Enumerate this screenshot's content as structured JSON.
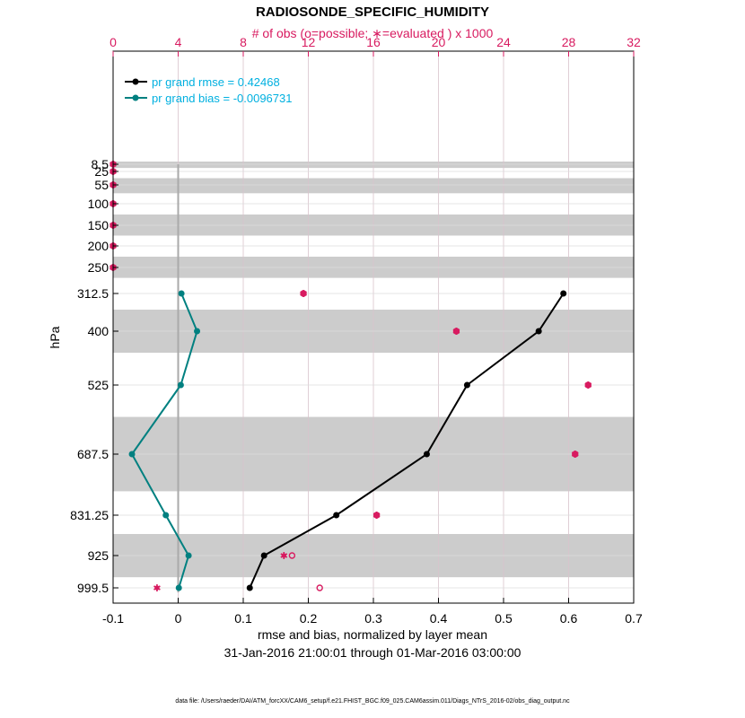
{
  "chart_data": {
    "type": "line",
    "title": "RADIOSONDE_SPECIFIC_HUMIDITY",
    "top_axis_label": "# of obs (o=possible; ∗=evaluated ) x 1000",
    "xlabel": "rmse and bias, normalized by layer mean",
    "date_range": "31-Jan-2016 21:00:01 through 01-Mar-2016 03:00:00",
    "ylabel": "hPa",
    "footer": "data file: /Users/raeder/DAI/ATM_forcXX/CAM6_setup/f.e21.FHIST_BGC.f09_025.CAM6assim.011/Diags_NTrS_2016-02/obs_diag_output.nc",
    "xlim": [
      -0.1,
      0.7
    ],
    "x_ticks": [
      -0.1,
      0,
      0.1,
      0.2,
      0.3,
      0.4,
      0.5,
      0.6,
      0.7
    ],
    "x_tick_labels": [
      "-0.1",
      "0",
      "0.1",
      "0.2",
      "0.3",
      "0.4",
      "0.5",
      "0.6",
      "0.7"
    ],
    "top_xlim": [
      0,
      32
    ],
    "top_ticks": [
      0,
      4,
      8,
      12,
      16,
      20,
      24,
      28,
      32
    ],
    "top_tick_labels": [
      "0",
      "4",
      "8",
      "12",
      "16",
      "20",
      "24",
      "28",
      "32"
    ],
    "y_levels": [
      8.5,
      25,
      55,
      100,
      150,
      200,
      250,
      312.5,
      400,
      525,
      687.5,
      831.25,
      925,
      999.5
    ],
    "y_tick_labels": [
      "8.5",
      "25",
      "55",
      "100",
      "150",
      "200",
      "250",
      "312.5",
      "400",
      "525",
      "687.5",
      "831.25",
      "925",
      "999.5"
    ],
    "y_direction": "reversed (pressure increases downward)",
    "layer_bands_hPa": [
      [
        0,
        17
      ],
      [
        40,
        75
      ],
      [
        125,
        175
      ],
      [
        225,
        275
      ],
      [
        350,
        450
      ],
      [
        600,
        775
      ],
      [
        875,
        975
      ]
    ],
    "grid": true,
    "legend_position": "top-left",
    "series": [
      {
        "name": "pr grand rmse = 0.42468",
        "color": "#000000",
        "levels": [
          312.5,
          400,
          525,
          687.5,
          831.25,
          925,
          999.5
        ],
        "values": [
          0.592,
          0.554,
          0.444,
          0.382,
          0.243,
          0.132,
          0.11
        ]
      },
      {
        "name": "pr grand bias = -0.0096731",
        "color": "#008080",
        "levels": [
          312.5,
          400,
          525,
          687.5,
          831.25,
          925,
          999.5
        ],
        "values": [
          0.005,
          0.029,
          0.004,
          -0.071,
          -0.019,
          0.016,
          0.001
        ]
      }
    ],
    "obs_counts_thousands": {
      "color": "#d81b60",
      "levels": [
        8.5,
        25,
        55,
        100,
        150,
        200,
        250,
        312.5,
        400,
        525,
        687.5,
        831.25,
        925,
        999.5
      ],
      "possible": [
        0,
        0,
        0,
        0,
        0,
        0,
        0,
        11.7,
        21.1,
        29.2,
        28.4,
        16.2,
        11.0,
        12.7
      ],
      "evaluated": [
        0,
        0,
        0,
        0,
        0,
        0,
        0,
        11.7,
        21.1,
        29.2,
        28.4,
        16.2,
        10.5,
        2.7
      ]
    }
  }
}
